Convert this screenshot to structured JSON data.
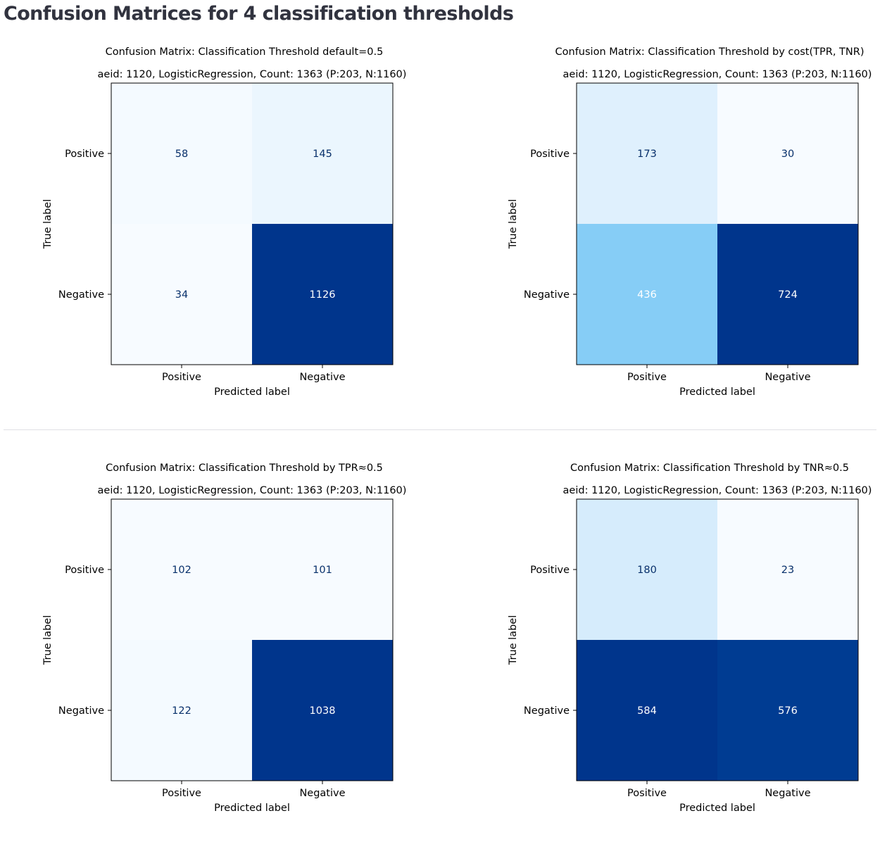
{
  "page_title": "Confusion Matrices for 4 classification thresholds",
  "colors": {
    "title_text": "#31333f",
    "colormap": "Blues",
    "light_text": "#08306b",
    "dark_text": "#ffffff"
  },
  "chart_data": [
    {
      "type": "heatmap",
      "title": "Confusion Matrix: Classification Threshold default=0.5",
      "subtitle": "aeid: 1120, LogisticRegression, Count: 1363 (P:203, N:1160)",
      "xlabel": "Predicted label",
      "ylabel": "True label",
      "x_categories": [
        "Positive",
        "Negative"
      ],
      "y_categories": [
        "Positive",
        "Negative"
      ],
      "values": [
        [
          58,
          145
        ],
        [
          34,
          1126
        ]
      ]
    },
    {
      "type": "heatmap",
      "title": "Confusion Matrix: Classification Threshold by cost(TPR, TNR)",
      "subtitle": "aeid: 1120, LogisticRegression, Count: 1363 (P:203, N:1160)",
      "xlabel": "Predicted label",
      "ylabel": "True label",
      "x_categories": [
        "Positive",
        "Negative"
      ],
      "y_categories": [
        "Positive",
        "Negative"
      ],
      "values": [
        [
          173,
          30
        ],
        [
          436,
          724
        ]
      ]
    },
    {
      "type": "heatmap",
      "title": "Confusion Matrix: Classification Threshold by TPR≈0.5",
      "subtitle": "aeid: 1120, LogisticRegression, Count: 1363 (P:203, N:1160)",
      "xlabel": "Predicted label",
      "ylabel": "True label",
      "x_categories": [
        "Positive",
        "Negative"
      ],
      "y_categories": [
        "Positive",
        "Negative"
      ],
      "values": [
        [
          102,
          101
        ],
        [
          122,
          1038
        ]
      ]
    },
    {
      "type": "heatmap",
      "title": "Confusion Matrix: Classification Threshold by TNR≈0.5",
      "subtitle": "aeid: 1120, LogisticRegression, Count: 1363 (P:203, N:1160)",
      "xlabel": "Predicted label",
      "ylabel": "True label",
      "x_categories": [
        "Positive",
        "Negative"
      ],
      "y_categories": [
        "Positive",
        "Negative"
      ],
      "values": [
        [
          180,
          23
        ],
        [
          584,
          576
        ]
      ]
    }
  ]
}
